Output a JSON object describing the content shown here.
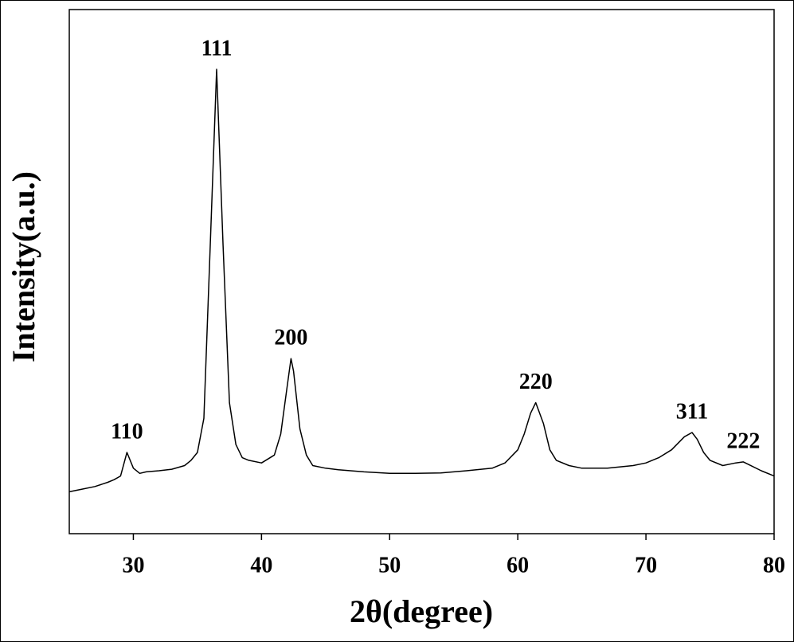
{
  "chart_data": {
    "type": "line",
    "x_label": "2θ(degree)",
    "y_label": "Intensity(a.u.)",
    "xlim": [
      25,
      80
    ],
    "xticks": [
      30,
      40,
      50,
      60,
      70,
      80
    ],
    "ylim": [
      0,
      100
    ],
    "series": [
      {
        "color": "#000000",
        "x": [
          25,
          26,
          27,
          28,
          28.5,
          29,
          29.5,
          30,
          30.5,
          31,
          32,
          33,
          34,
          34.5,
          35,
          35.5,
          36,
          36.5,
          37,
          37.5,
          38,
          38.5,
          39,
          40,
          41,
          41.5,
          42,
          42.3,
          42.5,
          43,
          43.5,
          44,
          45,
          46,
          48,
          50,
          52,
          54,
          56,
          58,
          59,
          60,
          60.5,
          61,
          61.4,
          62,
          62.5,
          63,
          64,
          65,
          67,
          69,
          70,
          71,
          72,
          73,
          73.6,
          74,
          74.5,
          75,
          76,
          77,
          77.6,
          78,
          79,
          80
        ],
        "values": [
          8,
          8.5,
          9,
          9.8,
          10.3,
          11,
          15.5,
          12.5,
          11.5,
          11.8,
          12,
          12.3,
          13,
          14,
          15.5,
          22,
          55,
          88.6,
          55,
          25,
          17,
          14.5,
          14,
          13.5,
          15,
          19,
          28,
          33.4,
          31,
          20,
          15,
          13,
          12.5,
          12.2,
          11.8,
          11.5,
          11.5,
          11.6,
          12,
          12.5,
          13.5,
          16,
          19,
          23,
          25,
          21,
          16,
          14,
          13,
          12.5,
          12.5,
          13,
          13.5,
          14.5,
          16,
          18.5,
          19.3,
          18,
          15.5,
          14,
          13,
          13.5,
          13.7,
          13.2,
          12,
          11
        ]
      }
    ],
    "annotations": [
      {
        "text": "110",
        "x": 29.5
      },
      {
        "text": "111",
        "x": 36.5
      },
      {
        "text": "200",
        "x": 42.3
      },
      {
        "text": "220",
        "x": 61.4
      },
      {
        "text": "311",
        "x": 73.6
      },
      {
        "text": "222",
        "x": 77.6
      }
    ]
  }
}
